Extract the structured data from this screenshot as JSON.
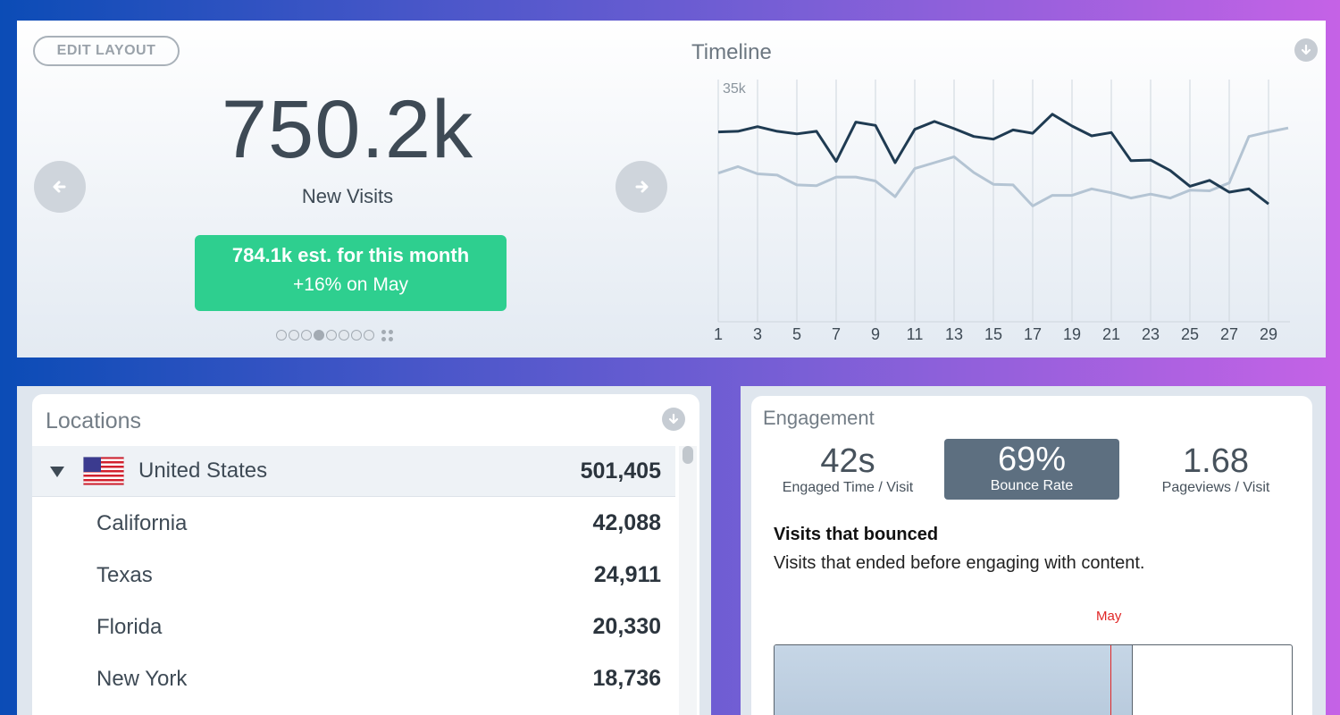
{
  "edit_layout_label": "EDIT LAYOUT",
  "summary": {
    "value": "750.2k",
    "label": "New Visits",
    "estimate": "784.1k est. for this month",
    "change": "+16% on May",
    "carousel_pages": 8,
    "carousel_active": 4
  },
  "timeline": {
    "title": "Timeline"
  },
  "chart_data": {
    "type": "line",
    "title": "Timeline",
    "x": [
      1,
      2,
      3,
      4,
      5,
      6,
      7,
      8,
      9,
      10,
      11,
      12,
      13,
      14,
      15,
      16,
      17,
      18,
      19,
      20,
      21,
      22,
      23,
      24,
      25,
      26,
      27,
      28,
      29,
      30
    ],
    "x_tick_labels": [
      "1",
      "3",
      "5",
      "7",
      "9",
      "11",
      "13",
      "15",
      "17",
      "19",
      "21",
      "23",
      "25",
      "27",
      "29"
    ],
    "y_tick_label": "35k",
    "ylim": [
      0,
      37000
    ],
    "grid": "vertical",
    "series": [
      {
        "color": "#1f3b52",
        "values": [
          29000,
          29100,
          29800,
          29100,
          28700,
          29100,
          24500,
          30500,
          30000,
          24300,
          29400,
          30600,
          29500,
          28300,
          27900,
          29300,
          28800,
          31700,
          29900,
          28400,
          28900,
          24600,
          24700,
          23100,
          20700,
          21600,
          19800,
          20300,
          18000,
          null
        ]
      },
      {
        "color": "#b4c4d3",
        "values": [
          22700,
          23700,
          22600,
          22400,
          20900,
          20800,
          22100,
          22100,
          21500,
          19100,
          23400,
          24300,
          25200,
          22800,
          21000,
          20900,
          17700,
          19300,
          19300,
          20300,
          19700,
          18900,
          19500,
          18900,
          20100,
          20000,
          21200,
          28300,
          29000,
          29600
        ]
      }
    ]
  },
  "locations": {
    "title": "Locations",
    "rows": [
      {
        "name": "United States",
        "value": "501,405"
      },
      {
        "name": "California",
        "value": "42,088"
      },
      {
        "name": "Texas",
        "value": "24,911"
      },
      {
        "name": "Florida",
        "value": "20,330"
      },
      {
        "name": "New York",
        "value": "18,736"
      }
    ]
  },
  "engagement": {
    "title": "Engagement",
    "stats": [
      {
        "value": "42s",
        "label": "Engaged Time / Visit"
      },
      {
        "value": "69%",
        "label": "Bounce Rate"
      },
      {
        "value": "1.68",
        "label": "Pageviews / Visit"
      }
    ],
    "heading": "Visits that bounced",
    "description": "Visits that ended before engaging with content.",
    "marker_label": "May",
    "bounce_fraction": 0.69,
    "marker_fraction": 0.65
  },
  "colors": {
    "accent_green": "#2ecf8f",
    "selected_stat": "#5d6f80",
    "marker_red": "#e02626"
  }
}
